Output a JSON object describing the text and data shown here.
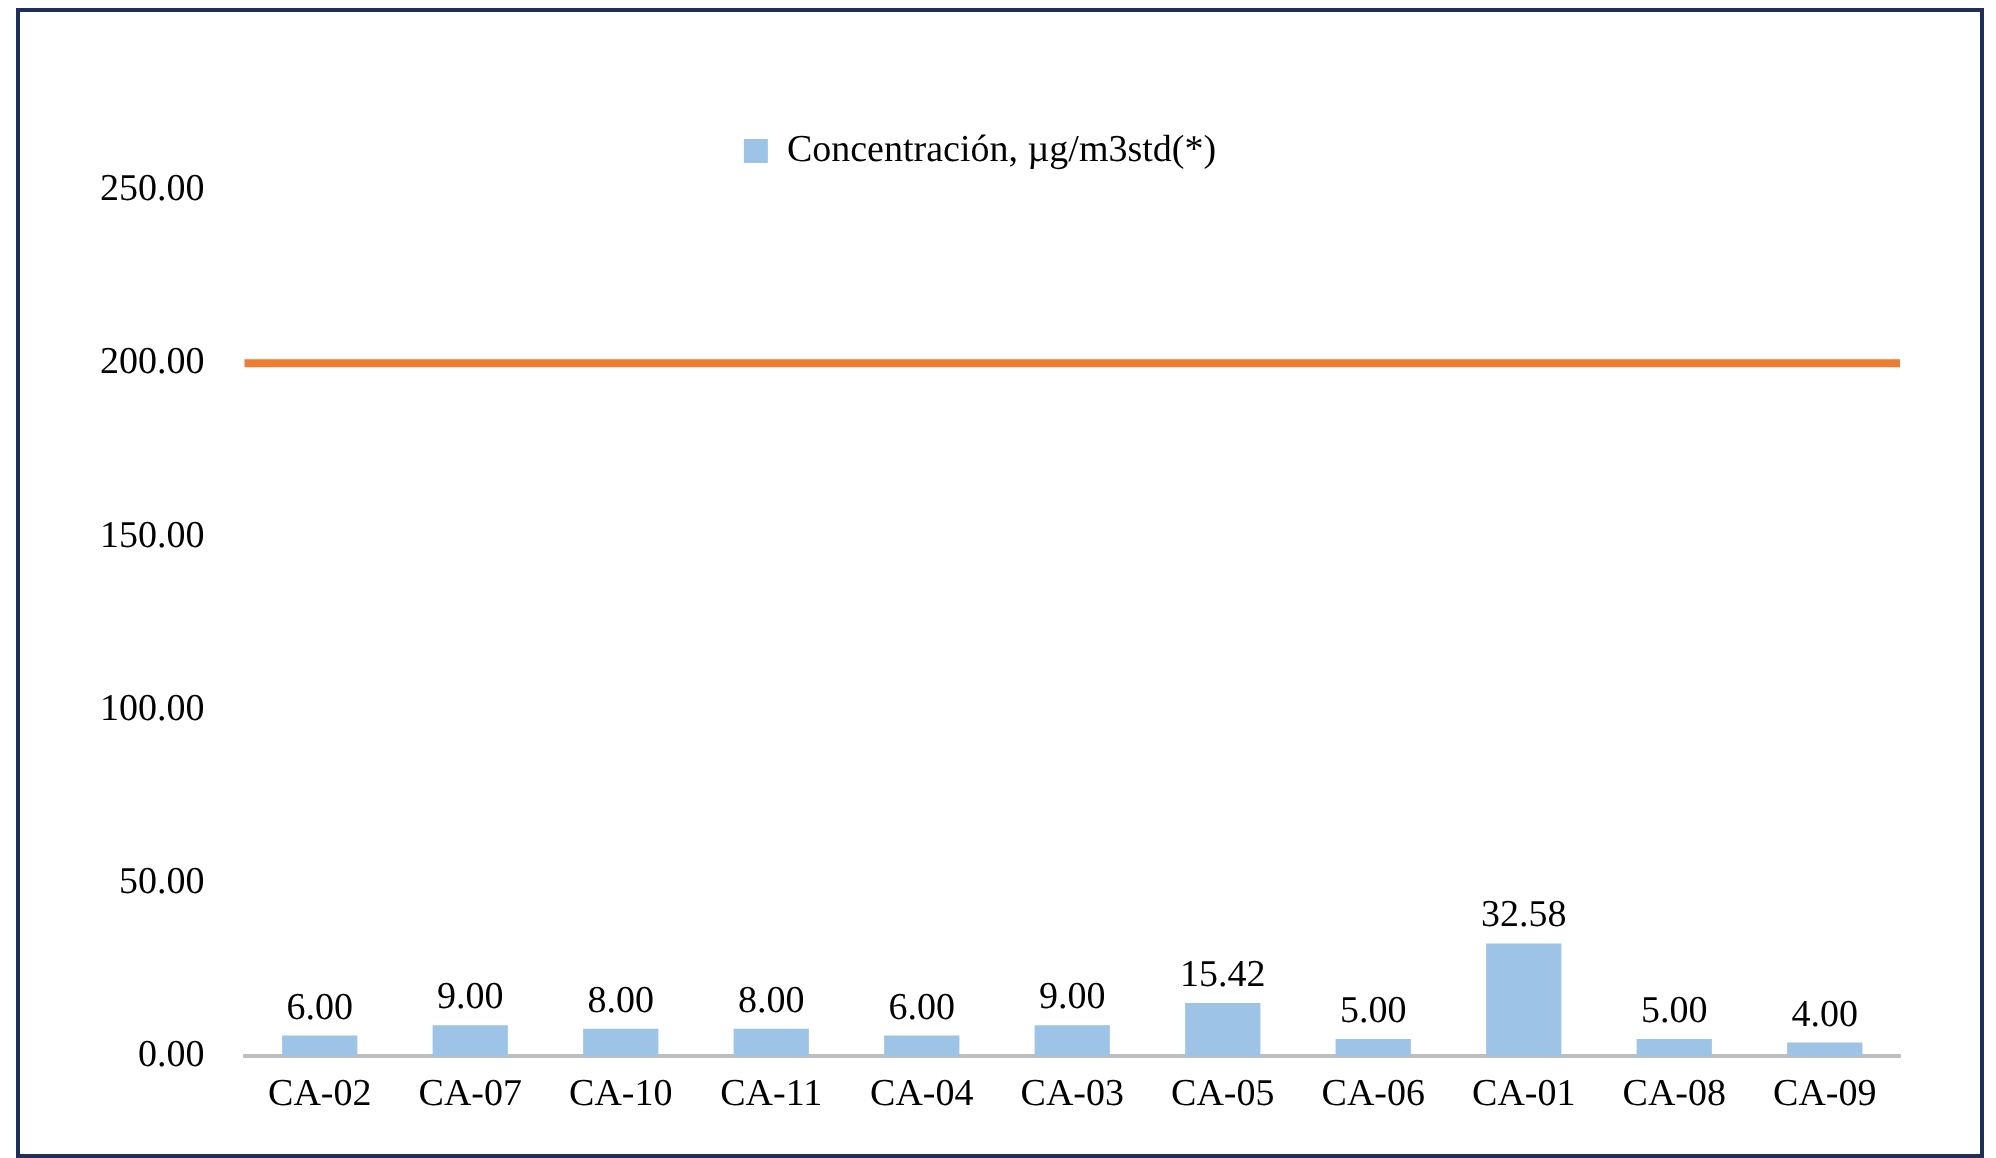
{
  "chart_data": {
    "type": "bar",
    "categories": [
      "CA-02",
      "CA-07",
      "CA-10",
      "CA-11",
      "CA-04",
      "CA-03",
      "CA-05",
      "CA-06",
      "CA-01",
      "CA-08",
      "CA-09"
    ],
    "series": [
      {
        "name": "Concentración, µg/m3std(*)",
        "color": "#9dc3e6",
        "values": [
          6,
          9,
          8,
          8,
          6,
          9,
          15.42,
          5,
          32.58,
          5,
          4
        ],
        "value_labels": [
          "6.00",
          "9.00",
          "8.00",
          "8.00",
          "6.00",
          "9.00",
          "15.42",
          "5.00",
          "32.58",
          "5.00",
          "4.00"
        ]
      }
    ],
    "ylim": [
      0,
      250
    ],
    "yticks": [
      {
        "value": 0,
        "label": "0.00"
      },
      {
        "value": 50,
        "label": "50.00"
      },
      {
        "value": 100,
        "label": "100.00"
      },
      {
        "value": 150,
        "label": "150.00"
      },
      {
        "value": 200,
        "label": "200.00"
      },
      {
        "value": 250,
        "label": "250.00"
      }
    ],
    "ref_lines": [
      {
        "axis": "y",
        "value": 200,
        "color": "#ed7d31"
      }
    ],
    "grid": false,
    "legend": "top"
  }
}
